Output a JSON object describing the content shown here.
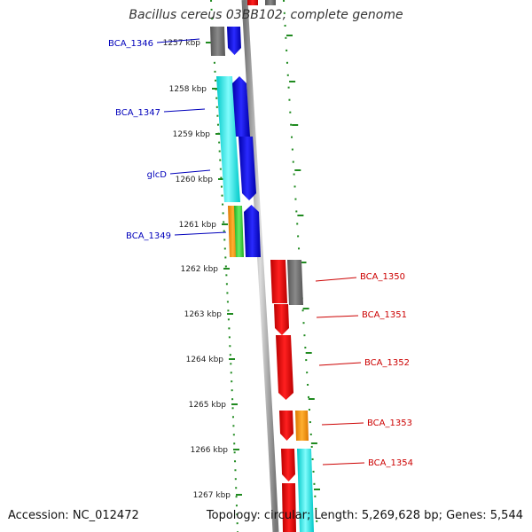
{
  "title": "Bacillus cereus 03BB102, complete genome",
  "footer": {
    "accession": "Accession: NC_012472",
    "summary": "Topology: circular; Length: 5,269,628 bp; Genes: 5,544"
  },
  "colors": {
    "blue": "#0000ee",
    "red": "#ee0000",
    "grey": "#707070",
    "cyan": "#00f0f0",
    "orange": "#ff9900",
    "green": "#33cc33",
    "tick": "#1f8a1f",
    "label_left": "#0000bb",
    "label_right": "#cc0000"
  },
  "ticks": [
    {
      "label": "1257 kbp"
    },
    {
      "label": "1258 kbp"
    },
    {
      "label": "1259 kbp"
    },
    {
      "label": "1260 kbp"
    },
    {
      "label": "1261 kbp"
    },
    {
      "label": "1262 kbp"
    },
    {
      "label": "1263 kbp"
    },
    {
      "label": "1264 kbp"
    },
    {
      "label": "1265 kbp"
    },
    {
      "label": "1266 kbp"
    },
    {
      "label": "1267 kbp"
    }
  ],
  "left_labels": [
    {
      "text": "BCA_1346"
    },
    {
      "text": "BCA_1347"
    },
    {
      "text": "glcD"
    },
    {
      "text": "BCA_1349"
    }
  ],
  "right_labels": [
    {
      "text": "BCA_1350"
    },
    {
      "text": "BCA_1351"
    },
    {
      "text": "BCA_1352"
    },
    {
      "text": "BCA_1353"
    },
    {
      "text": "BCA_1354"
    }
  ]
}
